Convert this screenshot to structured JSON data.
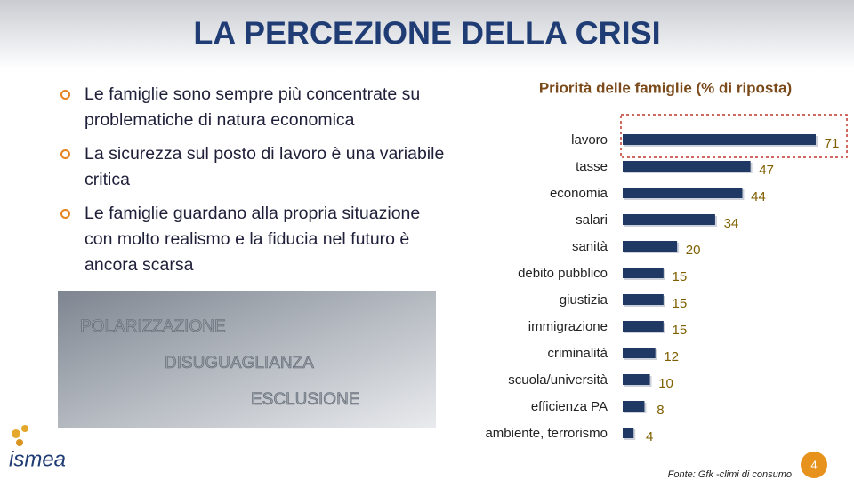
{
  "title": "LA PERCEZIONE DELLA CRISI",
  "bullets": [
    "Le famiglie sono sempre più concentrate su problematiche di natura economica",
    "La sicurezza sul posto di lavoro è una variabile critica",
    "Le famiglie guardano alla propria situazione con molto realismo e la fiducia nel futuro è ancora scarsa"
  ],
  "photo_labels": [
    "POLARIZZAZIONE",
    "DISUGUAGLIANZA",
    "ESCLUSIONE"
  ],
  "logo": "ismea",
  "source": "Fonte: Gfk -climi di consumo",
  "page_number": "4",
  "chart_data": {
    "type": "bar",
    "orientation": "horizontal",
    "title": "Priorità delle famiglie (% di riposta)",
    "categories": [
      "lavoro",
      "tasse",
      "economia",
      "salari",
      "sanità",
      "debito pubblico",
      "giustizia",
      "immigrazione",
      "criminalità",
      "scuola/università",
      "efficienza PA",
      "ambiente, terrorismo"
    ],
    "values": [
      71,
      47,
      44,
      34,
      20,
      15,
      15,
      15,
      12,
      10,
      8,
      4
    ],
    "color": "#1f3864",
    "label_color": "#7f6000"
  }
}
